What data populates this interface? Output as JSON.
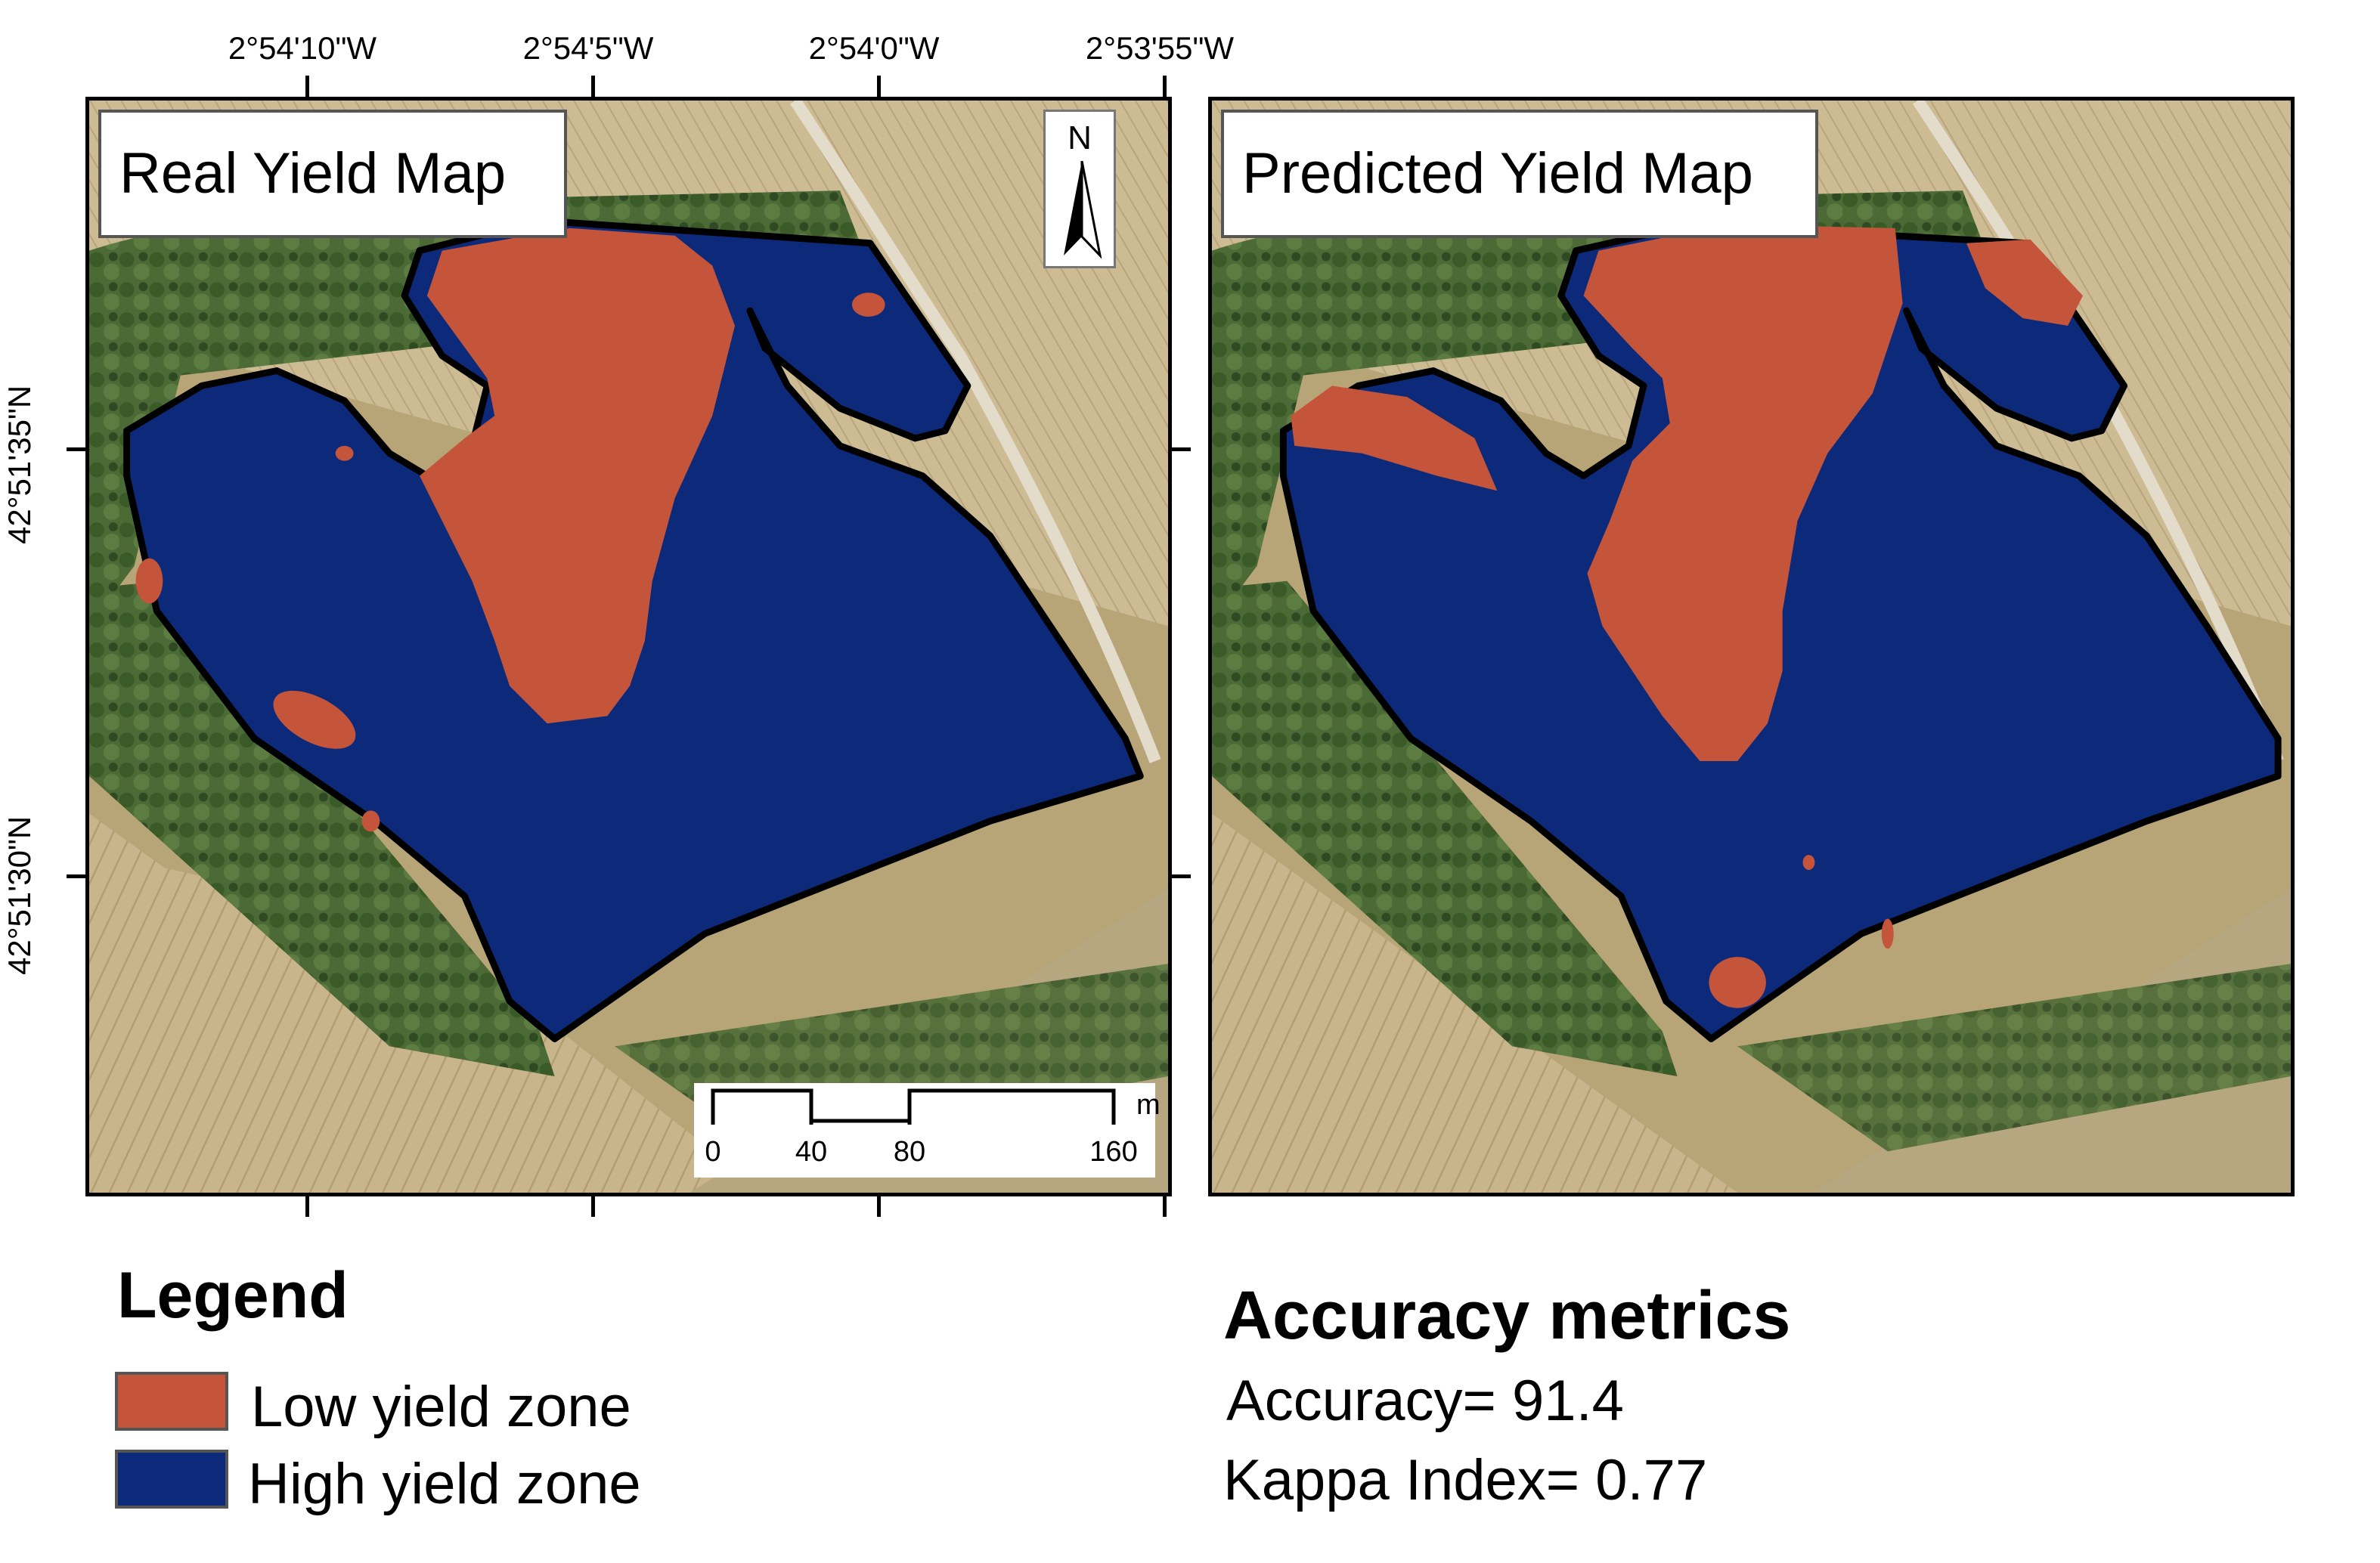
{
  "coordinates": {
    "longitude_labels": [
      "2°54'10\"W",
      "2°54'5\"W",
      "2°54'0\"W",
      "2°53'55\"W"
    ],
    "latitude_labels": [
      "42°51'35\"N",
      "42°51'30\"N"
    ]
  },
  "maps": [
    {
      "title": "Real Yield Map"
    },
    {
      "title": "Predicted Yield Map"
    }
  ],
  "north_arrow": {
    "letter": "N",
    "icon": "north-arrow-icon"
  },
  "scale_bar": {
    "unit": "m",
    "ticks": [
      "0",
      "40",
      "80",
      "160"
    ]
  },
  "legend": {
    "title": "Legend",
    "items": [
      {
        "label": "Low yield zone",
        "color": "#c4553a"
      },
      {
        "label": "High yield zone",
        "color": "#0d2a7a"
      }
    ]
  },
  "metrics": {
    "title": "Accuracy metrics",
    "accuracy": "Accuracy= 91.4",
    "kappa": "Kappa Index= 0.77"
  },
  "colors": {
    "low_yield": "#c4553a",
    "high_yield": "#0d2a7a",
    "field_tan": "#c7b387",
    "forest": "#4a6b34",
    "boundary": "#000000"
  }
}
